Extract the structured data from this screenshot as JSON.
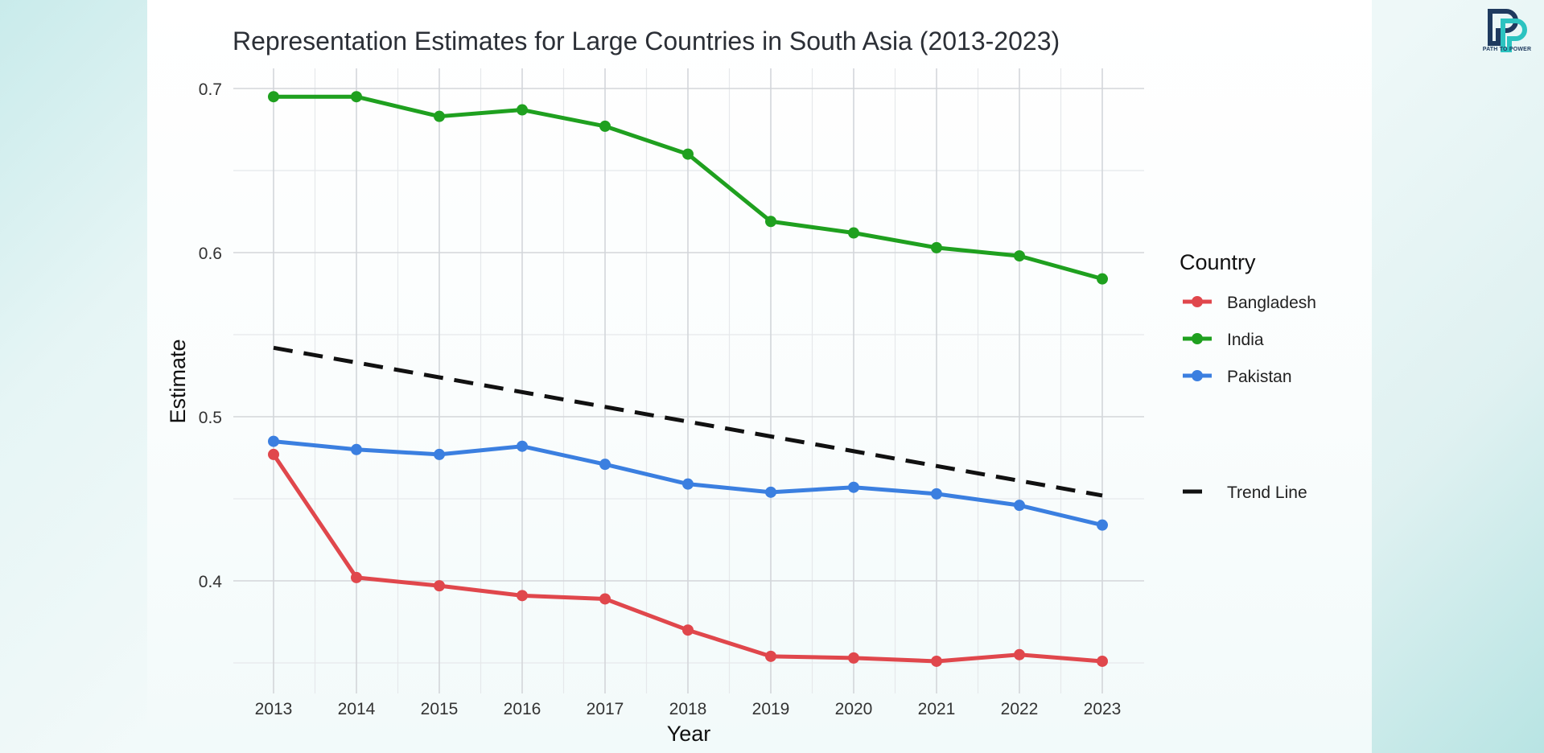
{
  "logo": {
    "text": "PATH TO POWER",
    "colors": {
      "primary": "#1f3a5f",
      "accent": "#2cc3c0"
    }
  },
  "chart_data": {
    "type": "line",
    "title": "Representation Estimates for Large Countries in South Asia (2013-2023)",
    "xlabel": "Year",
    "ylabel": "Estimate",
    "x": [
      2013,
      2014,
      2015,
      2016,
      2017,
      2018,
      2019,
      2020,
      2021,
      2022,
      2023
    ],
    "x_tick_labels": [
      "2013",
      "2014",
      "2015",
      "2016",
      "2017",
      "2018",
      "2019",
      "2020",
      "2021",
      "2022",
      "2023"
    ],
    "y_ticks": [
      0.4,
      0.5,
      0.6,
      0.7
    ],
    "y_tick_labels": [
      "0.4",
      "0.5",
      "0.6",
      "0.7"
    ],
    "ylim": [
      0.33,
      0.71
    ],
    "xlim": [
      2012.5,
      2023.5
    ],
    "grid": true,
    "legend_title": "Country",
    "legend_position": "right",
    "series": [
      {
        "name": "Bangladesh",
        "color": "#e0474c",
        "values": [
          0.477,
          0.402,
          0.397,
          0.391,
          0.389,
          0.37,
          0.354,
          0.353,
          0.351,
          0.355,
          0.351
        ]
      },
      {
        "name": "India",
        "color": "#1fa01f",
        "values": [
          0.695,
          0.695,
          0.683,
          0.687,
          0.677,
          0.66,
          0.619,
          0.612,
          0.603,
          0.598,
          0.584
        ]
      },
      {
        "name": "Pakistan",
        "color": "#3b7fe0",
        "values": [
          0.485,
          0.48,
          0.477,
          0.482,
          0.471,
          0.459,
          0.454,
          0.457,
          0.453,
          0.446,
          0.434
        ]
      }
    ],
    "trend_line": {
      "name": "Trend Line",
      "color": "#111111",
      "style": "dashed",
      "start": {
        "x": 2013,
        "y": 0.542
      },
      "end": {
        "x": 2023,
        "y": 0.452
      }
    }
  }
}
